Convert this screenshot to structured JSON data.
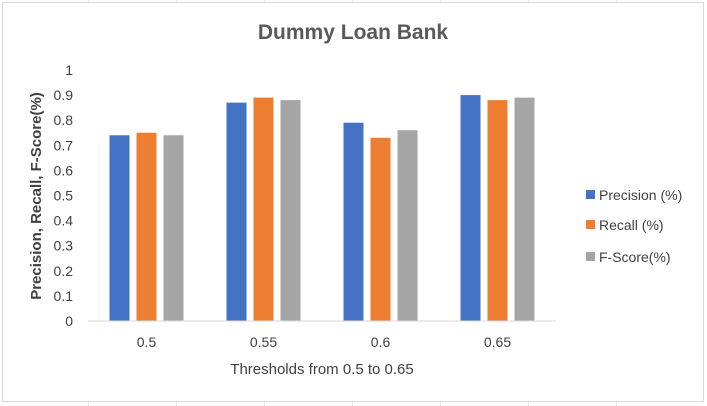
{
  "chart_data": {
    "type": "bar",
    "title": "Dummy Loan Bank",
    "xlabel": "Thresholds from 0.5 to 0.65",
    "ylabel": "Precision, Recall, F-Score(%)",
    "categories": [
      "0.5",
      "0.55",
      "0.6",
      "0.65"
    ],
    "yticks": [
      "0",
      "0.1",
      "0.2",
      "0.3",
      "0.4",
      "0.5",
      "0.6",
      "0.7",
      "0.8",
      "0.9",
      "1"
    ],
    "ylim": [
      0,
      1
    ],
    "grid": false,
    "legend_position": "right",
    "series": [
      {
        "name": "Precision (%)",
        "color": "#4472C4",
        "values": [
          0.74,
          0.87,
          0.79,
          0.9
        ]
      },
      {
        "name": "Recall (%)",
        "color": "#ED7D31",
        "values": [
          0.75,
          0.89,
          0.73,
          0.88
        ]
      },
      {
        "name": "F-Score(%)",
        "color": "#A5A5A5",
        "values": [
          0.74,
          0.88,
          0.76,
          0.89
        ]
      }
    ]
  }
}
